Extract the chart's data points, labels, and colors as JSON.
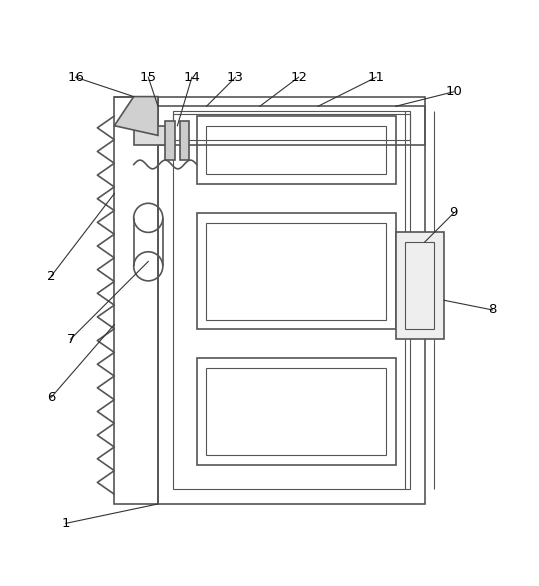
{
  "fig_width": 5.39,
  "fig_height": 5.86,
  "dpi": 100,
  "bg_color": "#ffffff",
  "lc": "#555555",
  "lw": 1.2,
  "tlw": 0.8
}
